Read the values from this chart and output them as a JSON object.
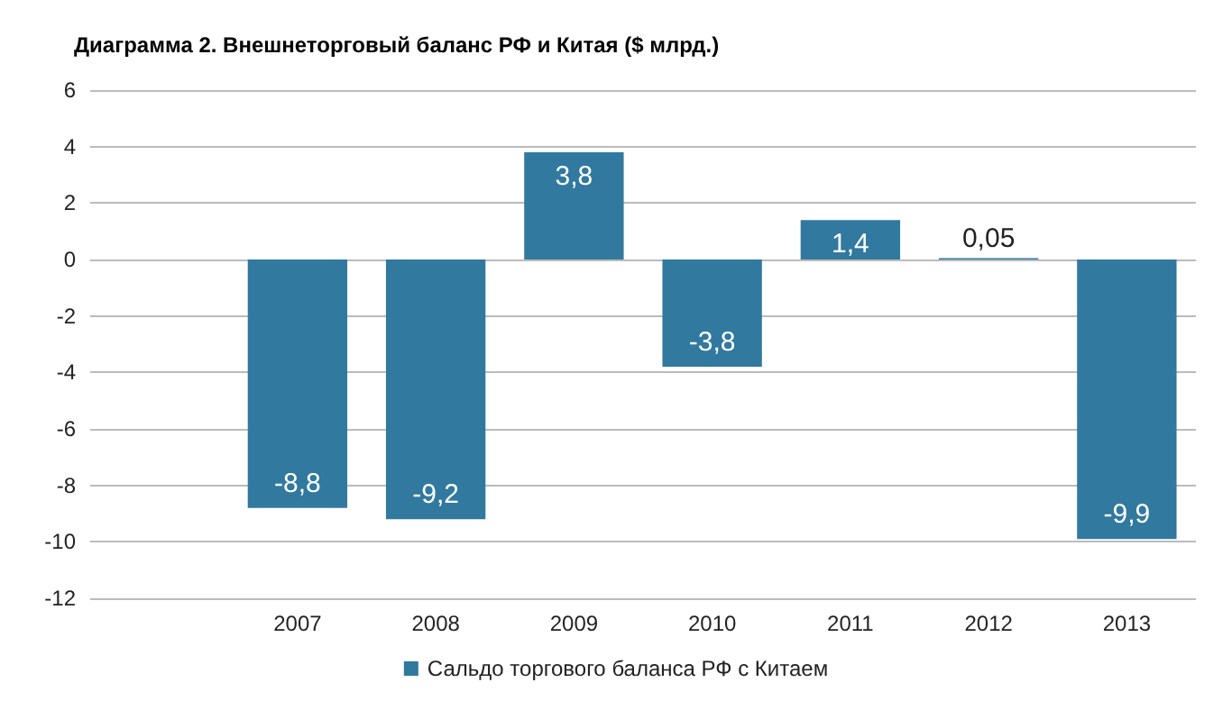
{
  "chart_data": {
    "type": "bar",
    "title": "Диаграмма 2. Внешнеторговый баланс РФ и Китая ($ млрд.)",
    "categories": [
      null,
      "2007",
      "2008",
      "2009",
      "2010",
      "2011",
      "2012",
      "2013"
    ],
    "series": [
      {
        "name": "Сальдо торгового баланса РФ с Китаем",
        "color": "#31799e",
        "values": [
          null,
          -8.8,
          -9.2,
          3.8,
          -3.8,
          1.4,
          0.05,
          -9.9
        ],
        "value_labels": [
          null,
          "-8,8",
          "-9,2",
          "3,8",
          "-3,8",
          "1,4",
          "0,05",
          "-9,9"
        ]
      }
    ],
    "ylim": [
      -12,
      6
    ],
    "yticks": [
      -12,
      -10,
      -8,
      -6,
      -4,
      -2,
      0,
      2,
      4,
      6
    ],
    "grid": "y",
    "legend": "bottom"
  }
}
